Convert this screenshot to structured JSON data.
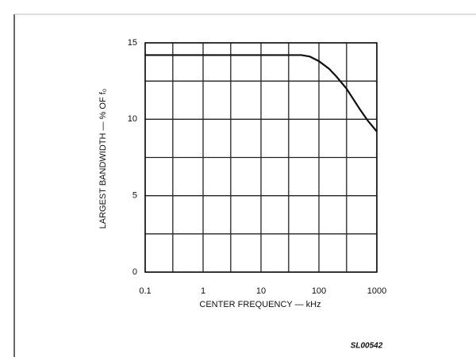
{
  "chart_data": {
    "type": "line",
    "ylabel": "LARGEST BANDWIDTH — % OF f₀",
    "xlabel": "CENTER FREQUENCY — kHz",
    "annotation": "SL00542",
    "x": [
      0.1,
      1,
      10,
      30,
      50,
      70,
      100,
      150,
      200,
      300,
      500,
      700,
      1000
    ],
    "values": [
      14.2,
      14.2,
      14.2,
      14.2,
      14.2,
      14.1,
      13.8,
      13.3,
      12.8,
      12.0,
      10.7,
      9.9,
      9.2
    ],
    "color": "#111111",
    "xscale": "log",
    "xlim": [
      0.1,
      1000
    ],
    "xticks": [
      0.1,
      1,
      10,
      100,
      1000
    ],
    "xgrid_minor": [
      0.3,
      3,
      30,
      300
    ],
    "ylim": [
      0,
      15
    ],
    "yticks": [
      0,
      5,
      10,
      15
    ],
    "ygrid_minor": [
      2.5,
      7.5,
      12.5
    ],
    "grid": true
  }
}
